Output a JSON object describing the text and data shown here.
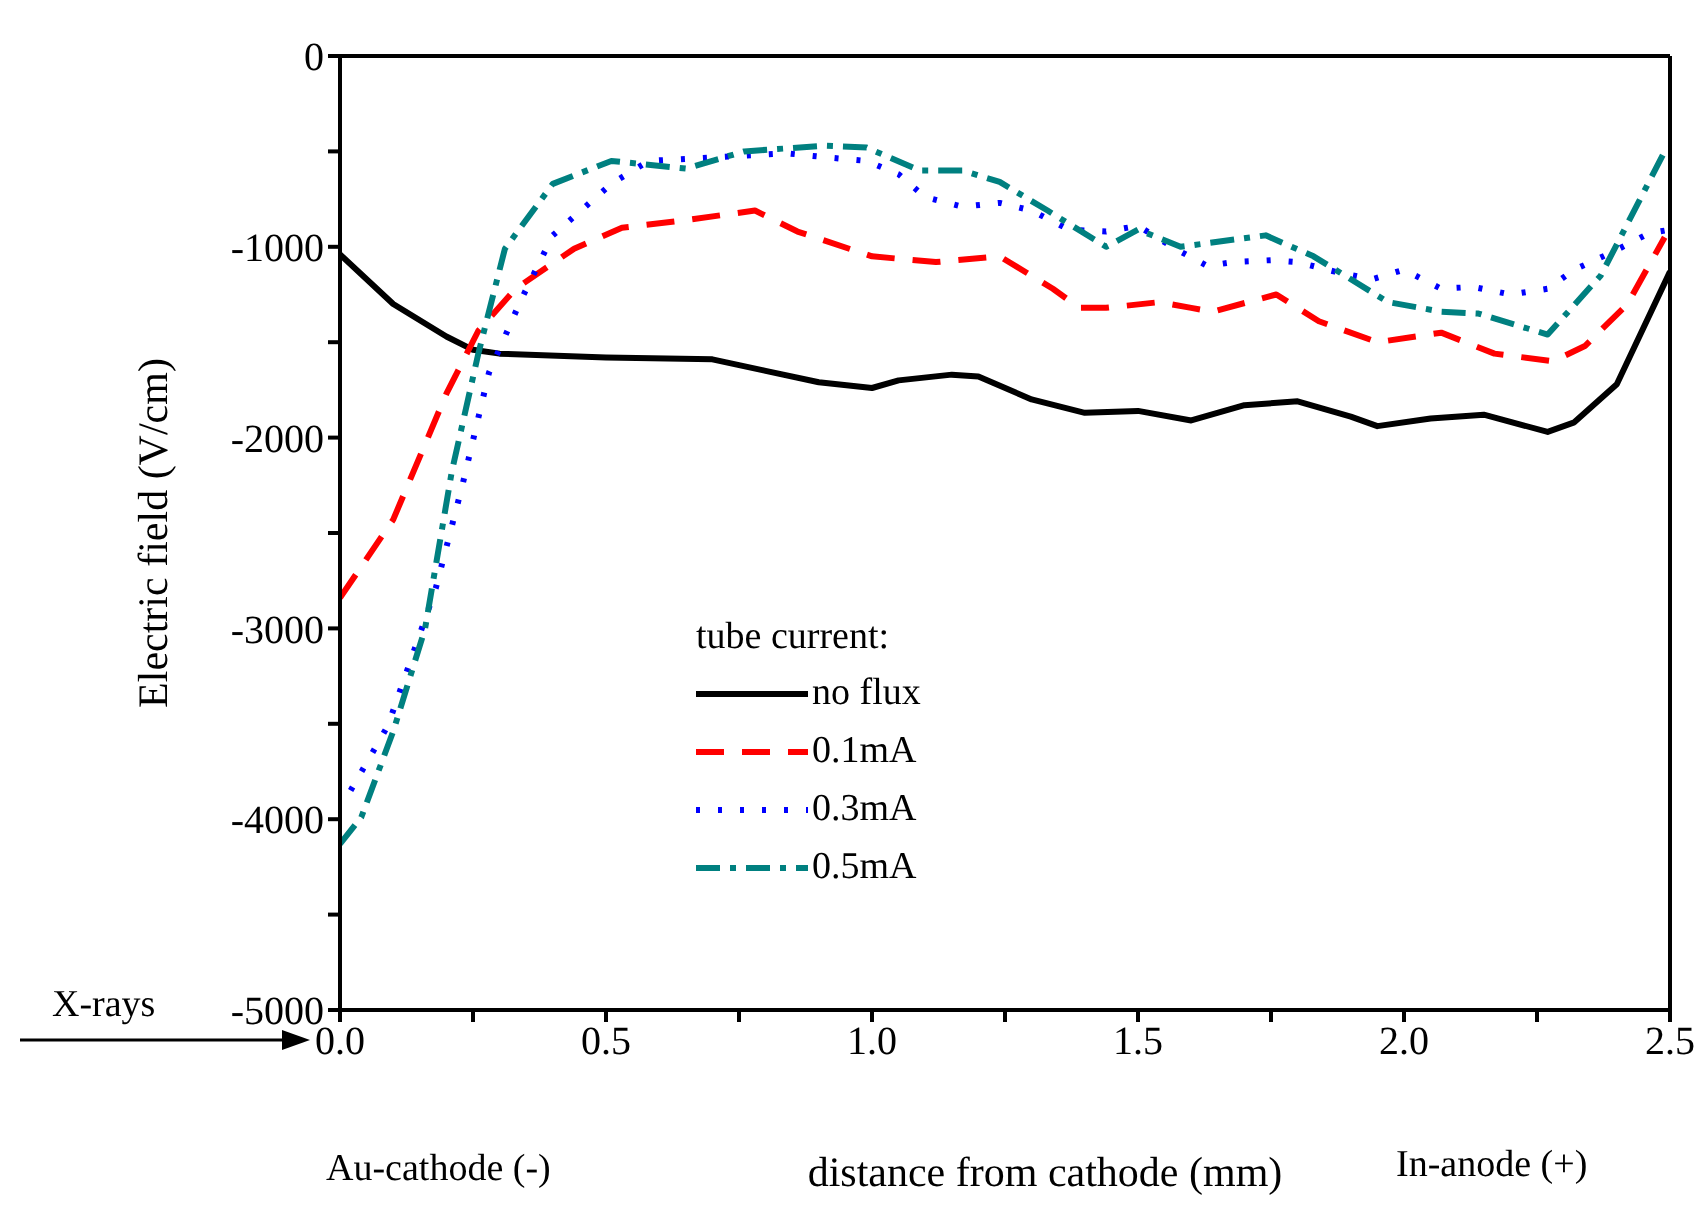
{
  "chart_data": {
    "type": "line",
    "xlabel": "distance from cathode (mm)",
    "ylabel": "Electric field (V/cm)",
    "legend_title": "tube current:",
    "legend": "bottom left",
    "grid": false,
    "marker": "none",
    "xlim": [
      0,
      2.5
    ],
    "ylim": [
      -5000,
      0
    ],
    "xticks": [
      {
        "value": 0,
        "label": "0.0"
      },
      {
        "value": 0.25,
        "label": null
      },
      {
        "value": 0.5,
        "label": "0.5"
      },
      {
        "value": 0.75,
        "label": null
      },
      {
        "value": 1,
        "label": "1.0"
      },
      {
        "value": 1.25,
        "label": null
      },
      {
        "value": 1.5,
        "label": "1.5"
      },
      {
        "value": 1.75,
        "label": null
      },
      {
        "value": 2,
        "label": "2.0"
      },
      {
        "value": 2.25,
        "label": null
      },
      {
        "value": 2.5,
        "label": "2.5"
      }
    ],
    "yticks": [
      -5000,
      {
        "value": -4500,
        "label": null
      },
      -4000,
      {
        "value": -3500,
        "label": null
      },
      -3000,
      {
        "value": -2500,
        "label": null
      },
      -2000,
      {
        "value": -1500,
        "label": null
      },
      -1000,
      {
        "value": -500,
        "label": null
      },
      0
    ],
    "annotations": [
      "X-rays",
      "Au-cathode (-)",
      "In-anode (+)"
    ],
    "series": [
      {
        "name": "no flux",
        "color": "#000000",
        "line_style": "solid",
        "x": [
          0,
          0.1,
          0.2,
          0.25,
          0.3,
          0.5,
          0.7,
          0.8,
          0.9,
          1.0,
          1.05,
          1.15,
          1.2,
          1.3,
          1.4,
          1.5,
          1.6,
          1.7,
          1.8,
          1.9,
          1.95,
          2.05,
          2.15,
          2.27,
          2.32,
          2.4,
          2.5
        ],
        "values": [
          -1040,
          -1300,
          -1470,
          -1540,
          -1560,
          -1580,
          -1590,
          -1650,
          -1710,
          -1740,
          -1700,
          -1670,
          -1680,
          -1800,
          -1870,
          -1860,
          -1910,
          -1830,
          -1810,
          -1890,
          -1940,
          -1900,
          -1880,
          -1970,
          -1920,
          -1720,
          -1130
        ]
      },
      {
        "name": "0.1mA",
        "color": "#ff0000",
        "line_style": "dashed",
        "x": [
          0,
          0.1,
          0.2,
          0.26,
          0.33,
          0.44,
          0.53,
          0.65,
          0.78,
          0.86,
          1.0,
          1.12,
          1.24,
          1.34,
          1.39,
          1.44,
          1.54,
          1.6,
          1.64,
          1.76,
          1.84,
          1.95,
          2.07,
          2.17,
          2.28,
          2.34,
          2.42,
          2.49
        ],
        "values": [
          -2840,
          -2430,
          -1770,
          -1440,
          -1220,
          -1010,
          -900,
          -860,
          -810,
          -920,
          -1050,
          -1080,
          -1050,
          -1220,
          -1320,
          -1320,
          -1290,
          -1320,
          -1340,
          -1250,
          -1390,
          -1500,
          -1450,
          -1560,
          -1600,
          -1520,
          -1300,
          -950
        ]
      },
      {
        "name": "0.3mA",
        "color": "#0000ff",
        "line_style": "dotted",
        "x": [
          0.02,
          0.09,
          0.18,
          0.23,
          0.28,
          0.34,
          0.4,
          0.51,
          0.58,
          0.71,
          0.84,
          0.91,
          0.99,
          1.05,
          1.1,
          1.17,
          1.24,
          1.3,
          1.37,
          1.44,
          1.5,
          1.57,
          1.63,
          1.68,
          1.75,
          1.8,
          1.87,
          1.94,
          2.0,
          2.07,
          2.13,
          2.2,
          2.27,
          2.32,
          2.39,
          2.46,
          2.5
        ],
        "values": [
          -3850,
          -3510,
          -2790,
          -2250,
          -1660,
          -1280,
          -940,
          -670,
          -550,
          -530,
          -510,
          -530,
          -550,
          -620,
          -740,
          -790,
          -770,
          -810,
          -910,
          -920,
          -890,
          -1010,
          -1100,
          -1080,
          -1070,
          -1080,
          -1130,
          -1170,
          -1120,
          -1220,
          -1210,
          -1250,
          -1220,
          -1120,
          -1030,
          -930,
          -910
        ]
      },
      {
        "name": "0.5mA",
        "color": "#008080",
        "line_style": "dashdot",
        "x": [
          0,
          0.04,
          0.1,
          0.16,
          0.21,
          0.26,
          0.31,
          0.4,
          0.51,
          0.65,
          0.76,
          0.91,
          0.99,
          1.09,
          1.17,
          1.24,
          1.33,
          1.44,
          1.5,
          1.58,
          1.74,
          1.83,
          1.97,
          2.07,
          2.14,
          2.27,
          2.37,
          2.49
        ],
        "values": [
          -4130,
          -3990,
          -3540,
          -3000,
          -2180,
          -1560,
          -1010,
          -670,
          -550,
          -590,
          -500,
          -470,
          -480,
          -600,
          -600,
          -660,
          -810,
          -1000,
          -910,
          -1000,
          -940,
          -1050,
          -1290,
          -1340,
          -1350,
          -1460,
          -1150,
          -500
        ]
      }
    ]
  }
}
